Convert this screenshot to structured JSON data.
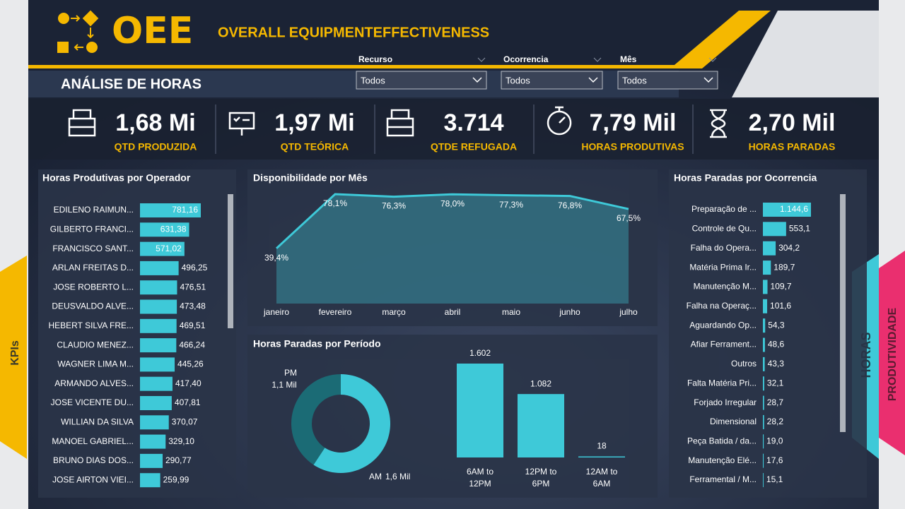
{
  "header": {
    "logo": "OEE",
    "title": "OVERALL EQUIPMENTEFFECTIVENESS",
    "subtitle": "ANÁLISE DE HORAS"
  },
  "filters": [
    {
      "label": "Recurso",
      "value": "Todos"
    },
    {
      "label": "Ocorrencia",
      "value": "Todos"
    },
    {
      "label": "Mês",
      "value": "Todos"
    }
  ],
  "kpis": [
    {
      "value": "1,68 Mi",
      "label": "QTD PRODUZIDA"
    },
    {
      "value": "1,97 Mi",
      "label": "QTD TEÓRICA"
    },
    {
      "value": "3.714",
      "label": "QTDE REFUGADA"
    },
    {
      "value": "7,79 Mil",
      "label": "HORAS PRODUTIVAS"
    },
    {
      "value": "2,70 Mil",
      "label": "HORAS PARADAS"
    }
  ],
  "tabs": {
    "left": "KPIs",
    "right": [
      "HORAS",
      "PRODUTIVIDADE"
    ]
  },
  "chart_data": [
    {
      "type": "hbar",
      "title": "Horas Produtivas por Operador",
      "color": "#3ec9d8",
      "categories": [
        "EDILENO RAIMUN...",
        "GILBERTO FRANCI...",
        "FRANCISCO SANT...",
        "ARLAN FREITAS D...",
        "JOSE ROBERTO L...",
        "DEUSVALDO ALVE...",
        "HEBERT SILVA FRE...",
        "CLAUDIO MENEZ...",
        "WAGNER LIMA M...",
        "ARMANDO ALVES...",
        "JOSE VICENTE DU...",
        "WILLIAN DA SILVA",
        "MANOEL GABRIEL...",
        "BRUNO DIAS DOS...",
        "JOSE AIRTON VIEI..."
      ],
      "values": [
        781.16,
        631.38,
        571.02,
        496.25,
        476.51,
        473.48,
        469.51,
        466.24,
        445.26,
        417.4,
        407.81,
        370.07,
        329.1,
        290.77,
        259.99
      ],
      "value_labels": [
        "781,16",
        "631,38",
        "571,02",
        "496,25",
        "476,51",
        "473,48",
        "469,51",
        "466,24",
        "445,26",
        "417,40",
        "407,81",
        "370,07",
        "329,10",
        "290,77",
        "259,99"
      ]
    },
    {
      "type": "area",
      "title": "Disponibilidade por Mês",
      "color": "#3ec9d8",
      "categories": [
        "janeiro",
        "fevereiro",
        "março",
        "abril",
        "maio",
        "junho",
        "julho"
      ],
      "values": [
        39.4,
        78.1,
        76.3,
        78.0,
        77.3,
        76.8,
        67.5
      ],
      "value_labels": [
        "39,4%",
        "78,1%",
        "76,3%",
        "78,0%",
        "77,3%",
        "76,8%",
        "67,5%"
      ]
    },
    {
      "type": "donut",
      "title": "Horas Paradas por Período",
      "colors": [
        "#1b6b75",
        "#3ec9d8"
      ],
      "categories": [
        "PM",
        "AM"
      ],
      "values": [
        1100,
        1600
      ],
      "value_labels": [
        "1,1 Mil",
        "1,6 Mil"
      ]
    },
    {
      "type": "bar",
      "color": "#3ec9d8",
      "categories": [
        "6AM to 12PM",
        "12PM to 6PM",
        "12AM to 6AM"
      ],
      "values": [
        1602,
        1082,
        18
      ],
      "value_labels": [
        "1.602",
        "1.082",
        "18"
      ]
    },
    {
      "type": "hbar",
      "title": "Horas Paradas por Ocorrencia",
      "color": "#3ec9d8",
      "categories": [
        "Preparação de ...",
        "Controle de Qu...",
        "Falha do Opera...",
        "Matéria Prima Ir...",
        "Manutenção M...",
        "Falha na Operaç...",
        "Aguardando Op...",
        "Afiar Ferrament...",
        "Outros",
        "Falta Matéria Pri...",
        "Forjado Irregular",
        "Dimensional",
        "Peça Batida / da...",
        "Manutenção Elé...",
        "Ferramental / M..."
      ],
      "values": [
        1144.6,
        553.1,
        304.2,
        189.7,
        109.7,
        101.6,
        54.3,
        48.6,
        43.3,
        32.1,
        28.7,
        28.2,
        19.0,
        17.6,
        15.1
      ],
      "value_labels": [
        "1.144,6",
        "553,1",
        "304,2",
        "189,7",
        "109,7",
        "101,6",
        "54,3",
        "48,6",
        "43,3",
        "32,1",
        "28,7",
        "28,2",
        "19,0",
        "17,6",
        "15,1"
      ]
    }
  ]
}
